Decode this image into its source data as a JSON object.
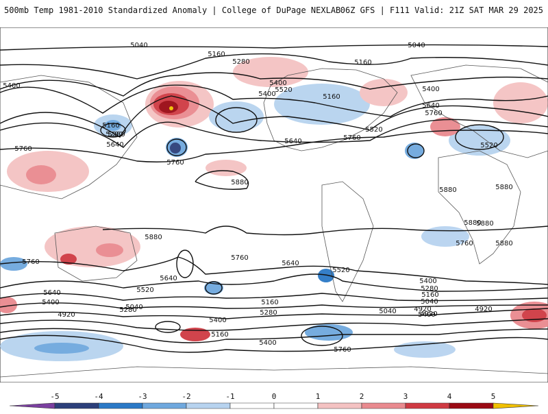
{
  "header": {
    "title": "500mb Temp 1981-2010 Standardized Anomaly | College of DuPage NEXLAB",
    "run_info": "06Z GFS | F111 Valid: 21Z SAT MAR 29 2025"
  },
  "colorbar": {
    "labels": [
      "-5",
      "-4",
      "-3",
      "-2",
      "-1",
      "0",
      "1",
      "2",
      "3",
      "4",
      "5"
    ],
    "colors": [
      "#7b3fa0",
      "#2c3f7a",
      "#2b79c6",
      "#6fa8de",
      "#b7d3ef",
      "#ffffff",
      "#f4c2c2",
      "#e98a8f",
      "#cf3a43",
      "#9a0a14",
      "#f0c000"
    ]
  },
  "contour_labels": [
    "5040",
    "5040",
    "5160",
    "5280",
    "5160",
    "5400",
    "5400",
    "5520",
    "5400",
    "5160",
    "5280",
    "5160",
    "5280",
    "5640",
    "5400",
    "5640",
    "5760",
    "5520",
    "5520",
    "5640",
    "5760",
    "5760",
    "5760",
    "5880",
    "5880",
    "5880",
    "5880",
    "5880",
    "5880",
    "5880",
    "5760",
    "5760",
    "5640",
    "5760",
    "5640",
    "5520",
    "5400",
    "5280",
    "5160",
    "5040",
    "4920",
    "5400",
    "5640",
    "5520",
    "5400",
    "5280",
    "5040",
    "4920",
    "5400",
    "5160",
    "5040",
    "4920",
    "5280",
    "5160",
    "5400",
    "4920",
    "5760"
  ]
}
